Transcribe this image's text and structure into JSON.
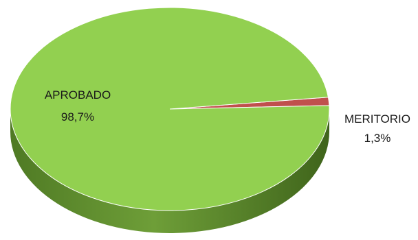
{
  "chart_data": {
    "type": "pie",
    "style": "3d",
    "title": "",
    "slices": [
      {
        "label": "APROBADO",
        "value": 98.7,
        "value_label": "98,7%",
        "color": "#92d050",
        "side_color": "#5f8f2e"
      },
      {
        "label": "MERITORIO",
        "value": 1.3,
        "value_label": "1,3%",
        "color": "#c0504d",
        "side_color": "#8c3633"
      }
    ]
  }
}
